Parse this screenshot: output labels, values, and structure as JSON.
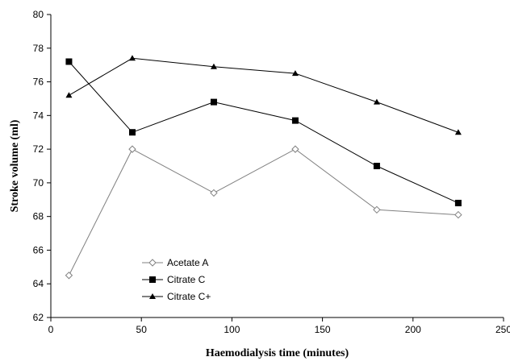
{
  "chart_data": {
    "type": "line",
    "title": "",
    "xlabel": "Haemodialysis time (minutes)",
    "ylabel": "Stroke volume (ml)",
    "xlim": [
      0,
      250
    ],
    "ylim": [
      62,
      80
    ],
    "x_ticks": [
      0,
      50,
      100,
      150,
      200,
      250
    ],
    "y_ticks": [
      62,
      64,
      66,
      68,
      70,
      72,
      74,
      76,
      78,
      80
    ],
    "grid": false,
    "legend_position": "bottom-left",
    "x": [
      10,
      45,
      90,
      135,
      180,
      225
    ],
    "series": [
      {
        "name": "Acetate A",
        "marker": "open-diamond",
        "color": "#808080",
        "values": [
          64.5,
          72.0,
          69.4,
          72.0,
          68.4,
          68.1
        ]
      },
      {
        "name": "Citrate C",
        "marker": "filled-square",
        "color": "#000000",
        "values": [
          77.2,
          73.0,
          74.8,
          73.7,
          71.0,
          68.8
        ]
      },
      {
        "name": "Citrate C+",
        "marker": "filled-triangle",
        "color": "#000000",
        "values": [
          75.2,
          77.4,
          76.9,
          76.5,
          74.8,
          73.0
        ]
      }
    ]
  }
}
